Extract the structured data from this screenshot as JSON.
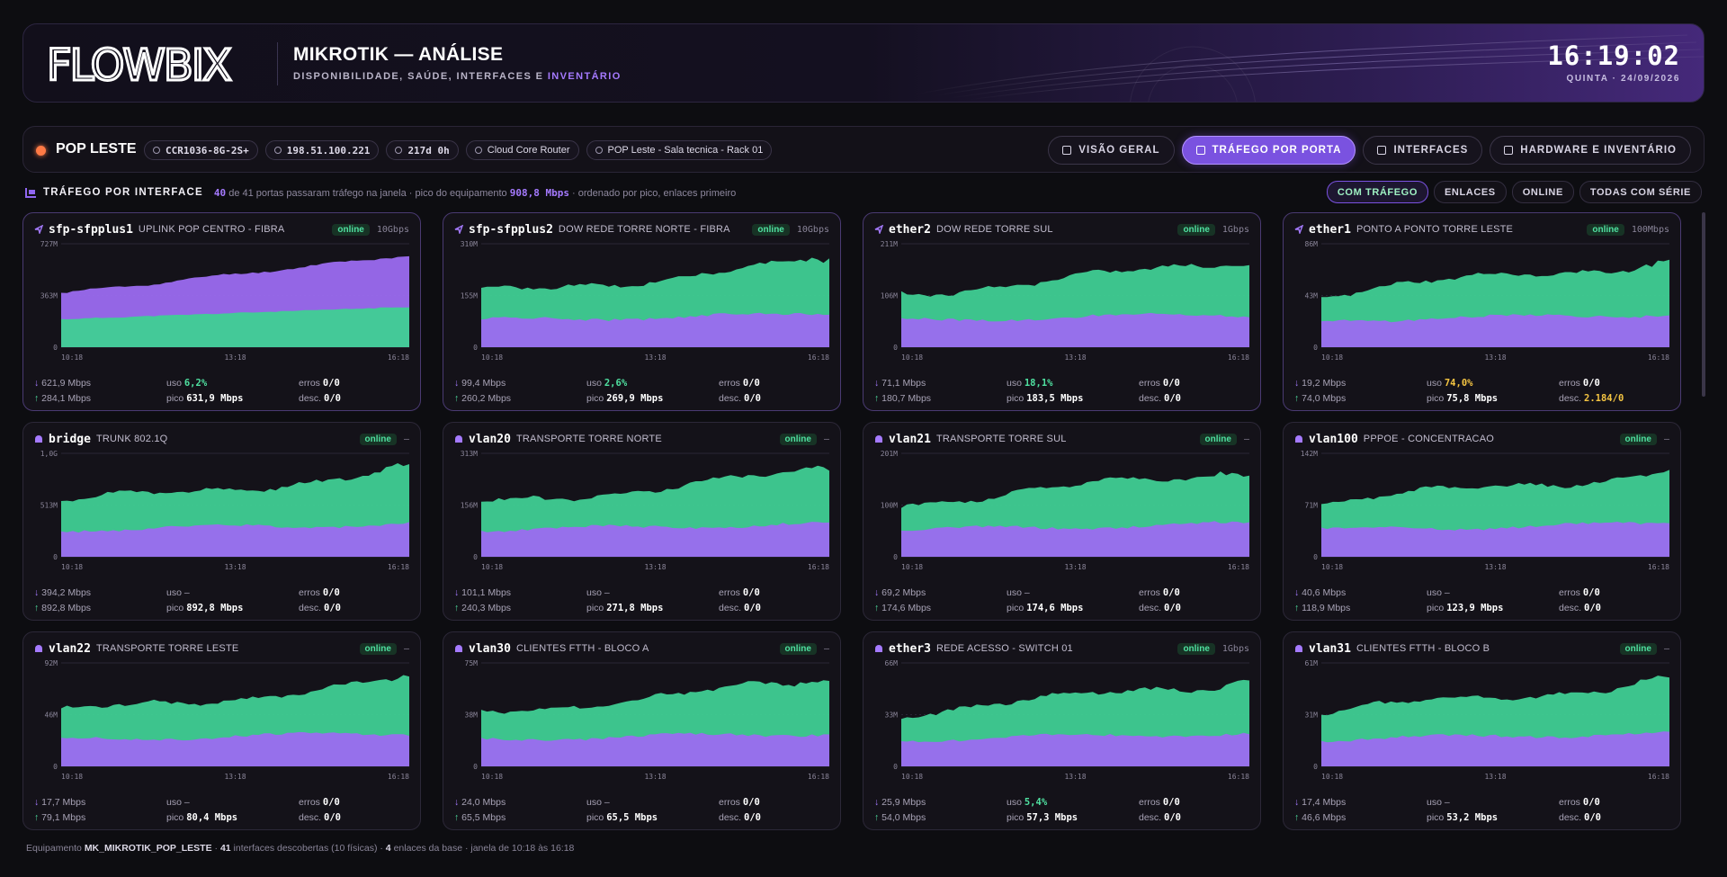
{
  "header": {
    "brand": "FLOWBIX",
    "title": "MIKROTIK — ANÁLISE",
    "subtitle_prefix": "DISPONIBILIDADE, SAÚDE, INTERFACES E",
    "subtitle_highlight": "INVENTÁRIO",
    "clock": "16:19:02",
    "date": "QUINTA · 24/09/2026"
  },
  "device": {
    "name": "POP LESTE",
    "status_color": "#ff7a45",
    "chips": [
      {
        "icon": "chip-icon",
        "text": "CCR1036-8G-2S+",
        "mono": true
      },
      {
        "icon": "cloud-icon",
        "text": "198.51.100.221",
        "mono": true
      },
      {
        "icon": "clock-icon",
        "text": "217d 0h",
        "mono": true
      },
      {
        "icon": "stack-icon",
        "text": "Cloud Core Router",
        "mono": false
      },
      {
        "icon": "pin-icon",
        "text": "POP Leste - Sala tecnica - Rack 01",
        "mono": false
      }
    ]
  },
  "nav": {
    "tabs": [
      {
        "label": "VISÃO GERAL",
        "active": false
      },
      {
        "label": "TRÁFEGO POR PORTA",
        "active": true
      },
      {
        "label": "INTERFACES",
        "active": false
      },
      {
        "label": "HARDWARE E INVENTÁRIO",
        "active": false
      }
    ]
  },
  "section": {
    "title": "TRÁFEGO POR INTERFACE",
    "count": "40",
    "info_mid": "de 41 portas passaram tráfego na janela · pico do equipamento",
    "peak": "908,8 Mbps",
    "info_end": "· ordenado por pico, enlaces primeiro",
    "filters": [
      {
        "label": "COM TRÁFEGO",
        "active": true
      },
      {
        "label": "ENLACES",
        "active": false
      },
      {
        "label": "ONLINE",
        "active": false
      },
      {
        "label": "TODAS COM SÉRIE",
        "active": false
      }
    ]
  },
  "labels": {
    "uso": "uso",
    "pico": "pico",
    "erros": "erros",
    "desc": "desc.",
    "online": "online",
    "x_ticks": [
      "10:18",
      "13:18",
      "16:18"
    ]
  },
  "colors": {
    "rx": "#9b6bf0",
    "tx": "#3fcf94",
    "accent": "#8f66f0"
  },
  "cards": [
    {
      "name": "sfp-sfpplus1",
      "desc": "UPLINK POP CENTRO - FIBRA",
      "speed": "10Gbps",
      "link": true,
      "rx": "621,9 Mbps",
      "tx": "284,1 Mbps",
      "uso": "6,2%",
      "uso_cls": "g",
      "pico": "631,9 Mbps",
      "erros": "0/0",
      "descartes": "0/0",
      "desc_cls": "",
      "ymax": "727M",
      "ymid": "363M",
      "ymin": "0",
      "purple_top": true
    },
    {
      "name": "sfp-sfpplus2",
      "desc": "DOW REDE TORRE NORTE - FIBRA",
      "speed": "10Gbps",
      "link": true,
      "rx": "99,4 Mbps",
      "tx": "260,2 Mbps",
      "uso": "2,6%",
      "uso_cls": "g",
      "pico": "269,9 Mbps",
      "erros": "0/0",
      "descartes": "0/0",
      "desc_cls": "",
      "ymax": "310M",
      "ymid": "155M",
      "ymin": "0",
      "purple_top": false
    },
    {
      "name": "ether2",
      "desc": "DOW REDE TORRE SUL",
      "speed": "1Gbps",
      "link": true,
      "rx": "71,1 Mbps",
      "tx": "180,7 Mbps",
      "uso": "18,1%",
      "uso_cls": "g",
      "pico": "183,5 Mbps",
      "erros": "0/0",
      "descartes": "0/0",
      "desc_cls": "",
      "ymax": "211M",
      "ymid": "106M",
      "ymin": "0",
      "purple_top": false
    },
    {
      "name": "ether1",
      "desc": "PONTO A PONTO TORRE LESTE",
      "speed": "100Mbps",
      "link": true,
      "rx": "19,2 Mbps",
      "tx": "74,0 Mbps",
      "uso": "74,0%",
      "uso_cls": "y",
      "pico": "75,8 Mbps",
      "erros": "0/0",
      "descartes": "2.184/0",
      "desc_cls": "o",
      "ymax": "86M",
      "ymid": "43M",
      "ymin": "0",
      "purple_top": false
    },
    {
      "name": "bridge",
      "desc": "TRUNK 802.1Q",
      "speed": "–",
      "link": false,
      "rx": "394,2 Mbps",
      "tx": "892,8 Mbps",
      "uso": "–",
      "uso_cls": "",
      "pico": "892,8 Mbps",
      "erros": "0/0",
      "descartes": "0/0",
      "desc_cls": "",
      "ymax": "1,0G",
      "ymid": "513M",
      "ymin": "0",
      "purple_top": false
    },
    {
      "name": "vlan20",
      "desc": "TRANSPORTE TORRE NORTE",
      "speed": "–",
      "link": false,
      "rx": "101,1 Mbps",
      "tx": "240,3 Mbps",
      "uso": "–",
      "uso_cls": "",
      "pico": "271,8 Mbps",
      "erros": "0/0",
      "descartes": "0/0",
      "desc_cls": "",
      "ymax": "313M",
      "ymid": "156M",
      "ymin": "0",
      "purple_top": false
    },
    {
      "name": "vlan21",
      "desc": "TRANSPORTE TORRE SUL",
      "speed": "–",
      "link": false,
      "rx": "69,2 Mbps",
      "tx": "174,6 Mbps",
      "uso": "–",
      "uso_cls": "",
      "pico": "174,6 Mbps",
      "erros": "0/0",
      "descartes": "0/0",
      "desc_cls": "",
      "ymax": "201M",
      "ymid": "100M",
      "ymin": "0",
      "purple_top": false
    },
    {
      "name": "vlan100",
      "desc": "PPPOE - CONCENTRACAO",
      "speed": "–",
      "link": false,
      "rx": "40,6 Mbps",
      "tx": "118,9 Mbps",
      "uso": "–",
      "uso_cls": "",
      "pico": "123,9 Mbps",
      "erros": "0/0",
      "descartes": "0/0",
      "desc_cls": "",
      "ymax": "142M",
      "ymid": "71M",
      "ymin": "0",
      "purple_top": false
    },
    {
      "name": "vlan22",
      "desc": "TRANSPORTE TORRE LESTE",
      "speed": "–",
      "link": false,
      "rx": "17,7 Mbps",
      "tx": "79,1 Mbps",
      "uso": "–",
      "uso_cls": "",
      "pico": "80,4 Mbps",
      "erros": "0/0",
      "descartes": "0/0",
      "desc_cls": "",
      "ymax": "92M",
      "ymid": "46M",
      "ymin": "0",
      "purple_top": false
    },
    {
      "name": "vlan30",
      "desc": "CLIENTES FTTH - BLOCO A",
      "speed": "–",
      "link": false,
      "rx": "24,0 Mbps",
      "tx": "65,5 Mbps",
      "uso": "–",
      "uso_cls": "",
      "pico": "65,5 Mbps",
      "erros": "0/0",
      "descartes": "0/0",
      "desc_cls": "",
      "ymax": "75M",
      "ymid": "38M",
      "ymin": "0",
      "purple_top": false
    },
    {
      "name": "ether3",
      "desc": "REDE ACESSO - SWITCH 01",
      "speed": "1Gbps",
      "link": false,
      "rx": "25,9 Mbps",
      "tx": "54,0 Mbps",
      "uso": "5,4%",
      "uso_cls": "g",
      "pico": "57,3 Mbps",
      "erros": "0/0",
      "descartes": "0/0",
      "desc_cls": "",
      "ymax": "66M",
      "ymid": "33M",
      "ymin": "0",
      "purple_top": false
    },
    {
      "name": "vlan31",
      "desc": "CLIENTES FTTH - BLOCO B",
      "speed": "–",
      "link": false,
      "rx": "17,4 Mbps",
      "tx": "46,6 Mbps",
      "uso": "–",
      "uso_cls": "",
      "pico": "53,2 Mbps",
      "erros": "0/0",
      "descartes": "0/0",
      "desc_cls": "",
      "ymax": "61M",
      "ymid": "31M",
      "ymin": "0",
      "purple_top": false
    }
  ],
  "footer": {
    "p1": "Equipamento",
    "device_id": "MK_MIKROTIK_POP_LESTE",
    "p2": "·",
    "ifaces": "41",
    "p3": "interfaces descobertas (10 físicas) ·",
    "links": "4",
    "p4": "enlaces da base · janela de 10:18 às 16:18"
  }
}
